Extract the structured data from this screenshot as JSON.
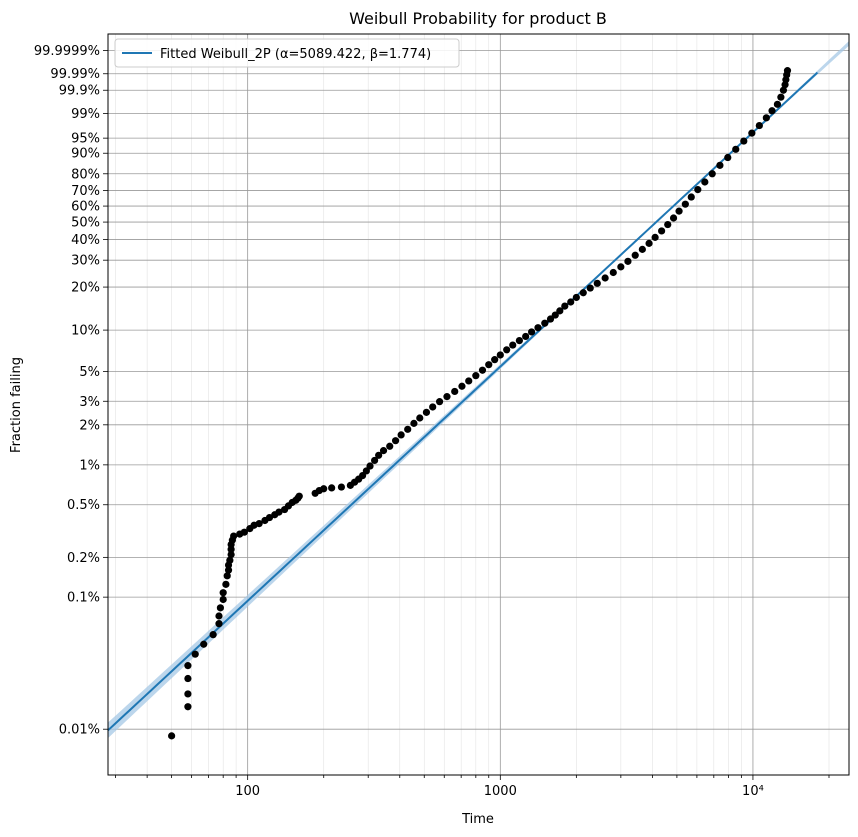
{
  "chart_data": {
    "type": "scatter",
    "title": "Weibull Probability for product B",
    "xlabel": "Time",
    "ylabel": "Fraction failing",
    "xscale": "log",
    "yscale": "weibull",
    "xlim": [
      28,
      24000
    ],
    "ylim_fraction": [
      4.5e-05,
      0.99999999
    ],
    "xticks": [
      {
        "value": 100,
        "label": "100"
      },
      {
        "value": 1000,
        "label": "1000"
      },
      {
        "value": 10000,
        "label": "10⁴"
      }
    ],
    "yticks": [
      {
        "value": 0.0001,
        "label": "0.01%"
      },
      {
        "value": 0.001,
        "label": "0.1%"
      },
      {
        "value": 0.002,
        "label": "0.2%"
      },
      {
        "value": 0.005,
        "label": "0.5%"
      },
      {
        "value": 0.01,
        "label": "1%"
      },
      {
        "value": 0.02,
        "label": "2%"
      },
      {
        "value": 0.03,
        "label": "3%"
      },
      {
        "value": 0.05,
        "label": "5%"
      },
      {
        "value": 0.1,
        "label": "10%"
      },
      {
        "value": 0.2,
        "label": "20%"
      },
      {
        "value": 0.3,
        "label": "30%"
      },
      {
        "value": 0.4,
        "label": "40%"
      },
      {
        "value": 0.5,
        "label": "50%"
      },
      {
        "value": 0.6,
        "label": "60%"
      },
      {
        "value": 0.7,
        "label": "70%"
      },
      {
        "value": 0.8,
        "label": "80%"
      },
      {
        "value": 0.9,
        "label": "90%"
      },
      {
        "value": 0.95,
        "label": "95%"
      },
      {
        "value": 0.99,
        "label": "99%"
      },
      {
        "value": 0.999,
        "label": "99.9%"
      },
      {
        "value": 0.9999,
        "label": "99.99%"
      },
      {
        "value": 0.999999,
        "label": "99.9999%"
      }
    ],
    "grid": true,
    "legend": {
      "location": "top-left",
      "entries": [
        "Fitted Weibull_2P (α=5089.422, β=1.774)"
      ]
    },
    "fit": {
      "name": "Fitted Weibull_2P",
      "alpha": 5089.422,
      "beta": 1.774,
      "x_range": [
        28,
        18000
      ],
      "color": "#1f77b4",
      "band_color": "#a6c8e6"
    },
    "confidence_band": {
      "lower_beta": 1.748,
      "upper_beta": 1.8,
      "alpha": 5089.422
    },
    "series": [
      {
        "name": "Failure data",
        "color": "#000000",
        "points": [
          [
            50,
            8.9e-05
          ],
          [
            58,
            0.000148
          ],
          [
            58,
            0.000185
          ],
          [
            58,
            0.000242
          ],
          [
            58,
            0.000303
          ],
          [
            62,
            0.00037
          ],
          [
            67,
            0.00044
          ],
          [
            73,
            0.00052
          ],
          [
            77,
            0.00063
          ],
          [
            77,
            0.00072
          ],
          [
            78,
            0.00083
          ],
          [
            80,
            0.00096
          ],
          [
            80,
            0.00108
          ],
          [
            82,
            0.00125
          ],
          [
            83,
            0.00145
          ],
          [
            84,
            0.0016
          ],
          [
            84,
            0.00175
          ],
          [
            85,
            0.0019
          ],
          [
            86,
            0.0021
          ],
          [
            86,
            0.0023
          ],
          [
            86,
            0.0025
          ],
          [
            87,
            0.0027
          ],
          [
            88,
            0.0029
          ],
          [
            93,
            0.003
          ],
          [
            97,
            0.0031
          ],
          [
            102,
            0.0033
          ],
          [
            106,
            0.0035
          ],
          [
            111,
            0.0036
          ],
          [
            117,
            0.0038
          ],
          [
            122,
            0.004
          ],
          [
            128,
            0.0042
          ],
          [
            133,
            0.0044
          ],
          [
            140,
            0.0046
          ],
          [
            145,
            0.0049
          ],
          [
            150,
            0.0052
          ],
          [
            155,
            0.0054
          ],
          [
            158,
            0.0056
          ],
          [
            160,
            0.0058
          ],
          [
            185,
            0.0061
          ],
          [
            192,
            0.0064
          ],
          [
            200,
            0.0066
          ],
          [
            215,
            0.0067
          ],
          [
            235,
            0.0068
          ],
          [
            255,
            0.007
          ],
          [
            265,
            0.0074
          ],
          [
            275,
            0.0078
          ],
          [
            285,
            0.0083
          ],
          [
            295,
            0.009
          ],
          [
            305,
            0.0098
          ],
          [
            318,
            0.0108
          ],
          [
            330,
            0.0118
          ],
          [
            345,
            0.0128
          ],
          [
            365,
            0.0138
          ],
          [
            385,
            0.0152
          ],
          [
            405,
            0.0168
          ],
          [
            430,
            0.0185
          ],
          [
            455,
            0.0205
          ],
          [
            480,
            0.0225
          ],
          [
            510,
            0.0248
          ],
          [
            540,
            0.0272
          ],
          [
            575,
            0.0298
          ],
          [
            615,
            0.0325
          ],
          [
            660,
            0.0355
          ],
          [
            705,
            0.0388
          ],
          [
            750,
            0.0425
          ],
          [
            800,
            0.0465
          ],
          [
            850,
            0.051
          ],
          [
            900,
            0.056
          ],
          [
            950,
            0.061
          ],
          [
            1000,
            0.066
          ],
          [
            1060,
            0.072
          ],
          [
            1120,
            0.078
          ],
          [
            1190,
            0.084
          ],
          [
            1260,
            0.09
          ],
          [
            1330,
            0.097
          ],
          [
            1410,
            0.104
          ],
          [
            1500,
            0.112
          ],
          [
            1580,
            0.12
          ],
          [
            1650,
            0.128
          ],
          [
            1720,
            0.137
          ],
          [
            1800,
            0.148
          ],
          [
            1900,
            0.158
          ],
          [
            2000,
            0.17
          ],
          [
            2130,
            0.183
          ],
          [
            2270,
            0.197
          ],
          [
            2420,
            0.212
          ],
          [
            2600,
            0.23
          ],
          [
            2800,
            0.25
          ],
          [
            3000,
            0.272
          ],
          [
            3200,
            0.295
          ],
          [
            3420,
            0.322
          ],
          [
            3650,
            0.35
          ],
          [
            3880,
            0.38
          ],
          [
            4100,
            0.412
          ],
          [
            4350,
            0.448
          ],
          [
            4600,
            0.485
          ],
          [
            4850,
            0.525
          ],
          [
            5100,
            0.568
          ],
          [
            5400,
            0.612
          ],
          [
            5700,
            0.658
          ],
          [
            6050,
            0.705
          ],
          [
            6450,
            0.752
          ],
          [
            6900,
            0.8
          ],
          [
            7400,
            0.845
          ],
          [
            7950,
            0.882
          ],
          [
            8550,
            0.915
          ],
          [
            9200,
            0.942
          ],
          [
            9900,
            0.962
          ],
          [
            10600,
            0.976
          ],
          [
            11300,
            0.986
          ],
          [
            11900,
            0.992
          ],
          [
            12500,
            0.9955
          ],
          [
            12900,
            0.9978
          ],
          [
            13200,
            0.999
          ],
          [
            13400,
            0.9995
          ],
          [
            13500,
            0.99975
          ],
          [
            13600,
            0.99988
          ],
          [
            13700,
            0.99994
          ]
        ]
      }
    ]
  }
}
